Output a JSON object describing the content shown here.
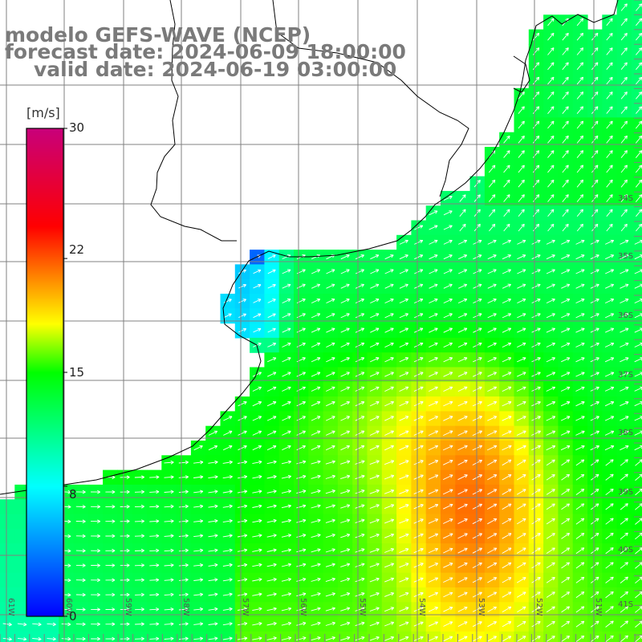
{
  "title": {
    "line1": "modelo GEFS-WAVE (NCEP)",
    "line2": "forecast date: 2024-06-09 18:00:00",
    "line3": "valid date: 2024-06-19 03:00:00"
  },
  "colorbar": {
    "unit": "[m/s]",
    "ticks": [
      "30",
      "22",
      "15",
      "8",
      "0"
    ],
    "tick_values": [
      30,
      22,
      15,
      8,
      0
    ],
    "colors": [
      "#0000ff",
      "#00ffff",
      "#00ff00",
      "#ffff00",
      "#ff0000",
      "#c8007a"
    ],
    "color_stops": [
      0,
      8,
      15,
      18,
      24,
      30
    ]
  },
  "map": {
    "lat_labels": [
      "34S",
      "35S",
      "36S",
      "37S",
      "38S",
      "39S",
      "40S",
      "41S"
    ],
    "lon_labels": [
      "61W",
      "60W",
      "59W",
      "58W",
      "57W",
      "56W",
      "55W",
      "54W",
      "53W",
      "52W",
      "51W"
    ],
    "land_color": "#ffffff",
    "grid_color": "#808080",
    "coast_color": "#000000",
    "arrow_color": "#ffffff",
    "wind_dir_deg_from_east": 25
  }
}
